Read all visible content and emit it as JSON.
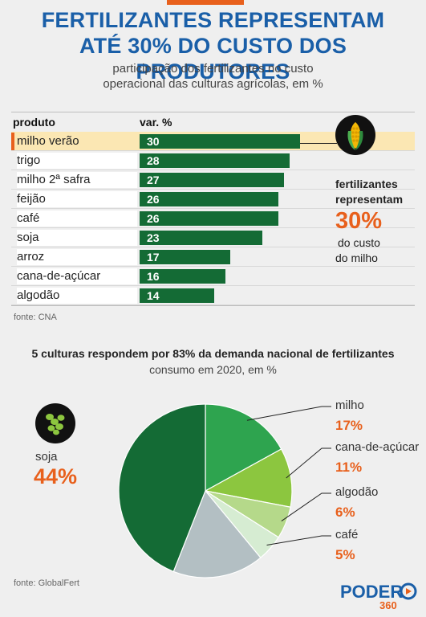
{
  "header": {
    "title_line1": "FERTILIZANTES REPRESENTAM",
    "title_line2": "ATÉ 30% DO CUSTO DOS PRODUTORES",
    "subtitle_line1": "participação dos fertilizantes no custo",
    "subtitle_line2": "operacional das culturas agrícolas, em %"
  },
  "callout": {
    "line1": "fertilizantes",
    "line2": "representam",
    "value": "30%",
    "line3": "do custo",
    "line4": "do milho",
    "icon": "corn-icon"
  },
  "source1": "fonte: CNA",
  "section2": {
    "title": "5 culturas respondem por 83% da demanda nacional de fertilizantes",
    "subtitle": "consumo em 2020, em %",
    "soja_icon": "soybean-icon"
  },
  "source2": "fonte: GlobalFert",
  "logo": {
    "brand": "PODER",
    "number": "360"
  },
  "colors": {
    "orange": "#e8601c",
    "blue": "#1a5fa8",
    "dark_green": "#146b35",
    "highlight": "#fbe7b3"
  },
  "chart_data": [
    {
      "type": "bar",
      "orientation": "horizontal",
      "column_headers": [
        "produto",
        "var. %"
      ],
      "categories": [
        "milho verão",
        "trigo",
        "milho 2ª safra",
        "feijão",
        "café",
        "soja",
        "arroz",
        "cana-de-açúcar",
        "algodão"
      ],
      "values": [
        30,
        28,
        27,
        26,
        26,
        23,
        17,
        16,
        14
      ],
      "highlighted": "milho verão",
      "xlim": [
        0,
        30
      ]
    },
    {
      "type": "pie",
      "slices": [
        {
          "label": "milho",
          "value": 17,
          "display": "17%",
          "color": "#2ea44f"
        },
        {
          "label": "cana-de-açúcar",
          "value": 11,
          "display": "11%",
          "color": "#8cc63f"
        },
        {
          "label": "algodão",
          "value": 6,
          "display": "6%",
          "color": "#b5d98a"
        },
        {
          "label": "café",
          "value": 5,
          "display": "5%",
          "color": "#d6ecd2"
        },
        {
          "label": "",
          "value": 17,
          "display": "",
          "color": "#b3bfc3"
        },
        {
          "label": "soja",
          "value": 44,
          "display": "44%",
          "color": "#146b35"
        }
      ]
    }
  ]
}
